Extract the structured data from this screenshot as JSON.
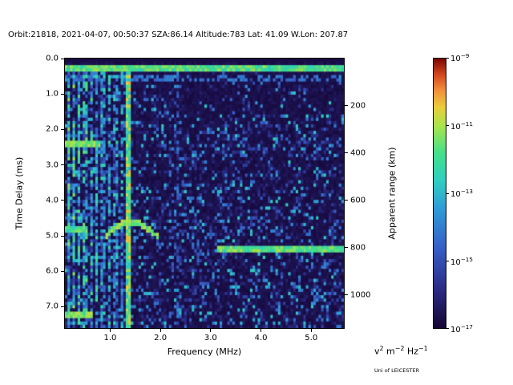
{
  "page": {
    "credit": "Uni of LEICESTER"
  },
  "chart_data": {
    "type": "heatmap",
    "title": "Orbit:21818, 2021-04-07, 00:50:37 SZA:86.14 Altitude:783 Lat: 41.09 W.Lon: 207.87",
    "xlabel": "Frequency (MHz)",
    "ylabel": "Time Delay (ms)",
    "ylabel_right": "Apparent range (km)",
    "x_range_mhz": [
      0.1,
      5.65
    ],
    "y_range_ms": [
      0,
      7.6
    ],
    "x_ticks": [
      "1.0",
      "2.0",
      "3.0",
      "4.0",
      "5.0"
    ],
    "y_ticks": [
      "0.0",
      "1.0",
      "2.0",
      "3.0",
      "4.0",
      "5.0",
      "6.0",
      "7.0"
    ],
    "right_ticks_km": [
      200,
      400,
      600,
      800,
      1000
    ],
    "range_km_per_ms": 150,
    "colorbar": {
      "scale": "log",
      "value_min": "1e-17",
      "value_max": "1e-9",
      "exponent_ticks": [
        "−9",
        "−11",
        "−13",
        "−15",
        "−17"
      ],
      "units": [
        [
          "v",
          "2"
        ],
        [
          " m",
          "−2"
        ],
        [
          " Hz",
          "−1"
        ]
      ],
      "stops": [
        [
          0.0,
          "#150533"
        ],
        [
          0.15,
          "#2b2d88"
        ],
        [
          0.3,
          "#3660c8"
        ],
        [
          0.45,
          "#2e9fd8"
        ],
        [
          0.55,
          "#2fd0c0"
        ],
        [
          0.65,
          "#45e08a"
        ],
        [
          0.75,
          "#a8e54a"
        ],
        [
          0.82,
          "#eccc3a"
        ],
        [
          0.88,
          "#f2923b"
        ],
        [
          0.94,
          "#d4471f"
        ],
        [
          1.0,
          "#7a0403"
        ]
      ]
    },
    "grid": {
      "cols": 110,
      "rows": 82,
      "seed": 20210407
    },
    "features": {
      "noise": {
        "base_density": 0.3,
        "left_fmax": 1.45,
        "left_density": 0.33,
        "top_quiet_dmax": 0.45,
        "midtop_dmax": 1.25,
        "midtop_density": 0.16,
        "topright_fmin": 2.6,
        "topright_dmax": 1.6,
        "topright_density": 0.1
      },
      "h_bands": [
        {
          "d": 0.26,
          "f0": 0.1,
          "f1": 5.65,
          "half": 0.12,
          "intensity": 0.68,
          "gate": 1.0
        },
        {
          "d": 0.55,
          "f0": 0.1,
          "f1": 5.65,
          "half": 0.08,
          "intensity": 0.35,
          "gate": 0.45
        },
        {
          "d": 2.45,
          "f0": 0.1,
          "f1": 0.8,
          "half": 0.09,
          "intensity": 0.72,
          "gate": 1.0
        },
        {
          "d": 4.85,
          "f0": 0.1,
          "f1": 0.55,
          "half": 0.09,
          "intensity": 0.66,
          "gate": 1.0
        },
        {
          "d": 5.35,
          "f0": 3.15,
          "f1": 5.65,
          "half": 0.09,
          "intensity": 0.7,
          "gate": 1.0
        },
        {
          "d": 7.2,
          "f0": 0.1,
          "f1": 0.65,
          "half": 0.09,
          "intensity": 0.72,
          "gate": 1.0
        }
      ],
      "v_lines": [
        {
          "f": 0.17,
          "half": 0.035,
          "lo": 0.2,
          "hi": 0.75,
          "gate": 0.85
        },
        {
          "f": 0.28,
          "half": 0.035,
          "lo": 0.2,
          "hi": 0.75,
          "gate": 0.8
        },
        {
          "f": 0.39,
          "half": 0.035,
          "lo": 0.2,
          "hi": 0.7,
          "gate": 0.75
        },
        {
          "f": 0.5,
          "half": 0.035,
          "lo": 0.2,
          "hi": 0.7,
          "gate": 0.75
        },
        {
          "f": 0.62,
          "half": 0.035,
          "lo": 0.18,
          "hi": 0.65,
          "gate": 0.7
        },
        {
          "f": 0.74,
          "half": 0.035,
          "lo": 0.18,
          "hi": 0.65,
          "gate": 0.7
        },
        {
          "f": 0.86,
          "half": 0.035,
          "lo": 0.18,
          "hi": 0.6,
          "gate": 0.65
        },
        {
          "f": 0.98,
          "half": 0.035,
          "lo": 0.18,
          "hi": 0.6,
          "gate": 0.65
        },
        {
          "f": 1.1,
          "half": 0.035,
          "lo": 0.18,
          "hi": 0.6,
          "gate": 0.6
        },
        {
          "f": 1.22,
          "half": 0.035,
          "lo": 0.18,
          "hi": 0.6,
          "gate": 0.6
        },
        {
          "f": 1.36,
          "half": 0.05,
          "lo": 0.5,
          "hi": 0.85,
          "gate": 1.0
        },
        {
          "f": 2.35,
          "half": 0.04,
          "lo": 0.15,
          "hi": 0.45,
          "gate": 0.5
        }
      ],
      "arc": {
        "f0": 0.92,
        "f1": 1.95,
        "fc": 1.42,
        "d_min": 4.62,
        "d_edge": 5.05,
        "half": 0.09,
        "intensity": 0.75
      }
    }
  }
}
